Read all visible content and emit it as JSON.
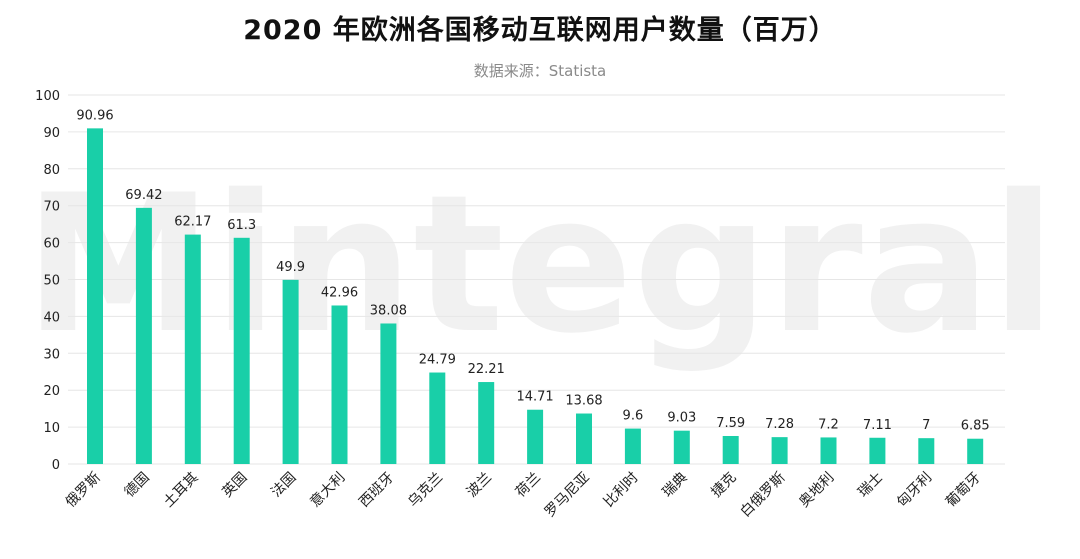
{
  "title": "2020 年欧洲各国移动互联网用户数量（百万）",
  "subtitle": "数据来源：Statista",
  "watermark": "Mintegral",
  "colors": {
    "bar": "#19cfa8",
    "grid": "#e6e6e6",
    "watermark": "#f1f1f1"
  },
  "chart_data": {
    "type": "bar",
    "title": "2020 年欧洲各国移动互联网用户数量（百万）",
    "subtitle": "数据来源：Statista",
    "xlabel": "",
    "ylabel": "",
    "ylim": [
      0,
      100
    ],
    "yticks": [
      0,
      10,
      20,
      30,
      40,
      50,
      60,
      70,
      80,
      90,
      100
    ],
    "grid": true,
    "legend": "none",
    "categories": [
      "俄罗斯",
      "德国",
      "土耳其",
      "英国",
      "法国",
      "意大利",
      "西班牙",
      "乌克兰",
      "波兰",
      "荷兰",
      "罗马尼亚",
      "比利时",
      "瑞典",
      "捷克",
      "白俄罗斯",
      "奥地利",
      "瑞士",
      "匈牙利",
      "葡萄牙"
    ],
    "values": [
      90.96,
      69.42,
      62.17,
      61.3,
      49.9,
      42.96,
      38.08,
      24.79,
      22.21,
      14.71,
      13.68,
      9.6,
      9.03,
      7.59,
      7.28,
      7.2,
      7.11,
      7,
      6.85
    ],
    "data_labels": [
      "90.96",
      "69.42",
      "62.17",
      "61.3",
      "49.9",
      "42.96",
      "38.08",
      "24.79",
      "22.21",
      "14.71",
      "13.68",
      "9.6",
      "9.03",
      "7.59",
      "7.28",
      "7.2",
      "7.11",
      "7",
      "6.85"
    ]
  }
}
